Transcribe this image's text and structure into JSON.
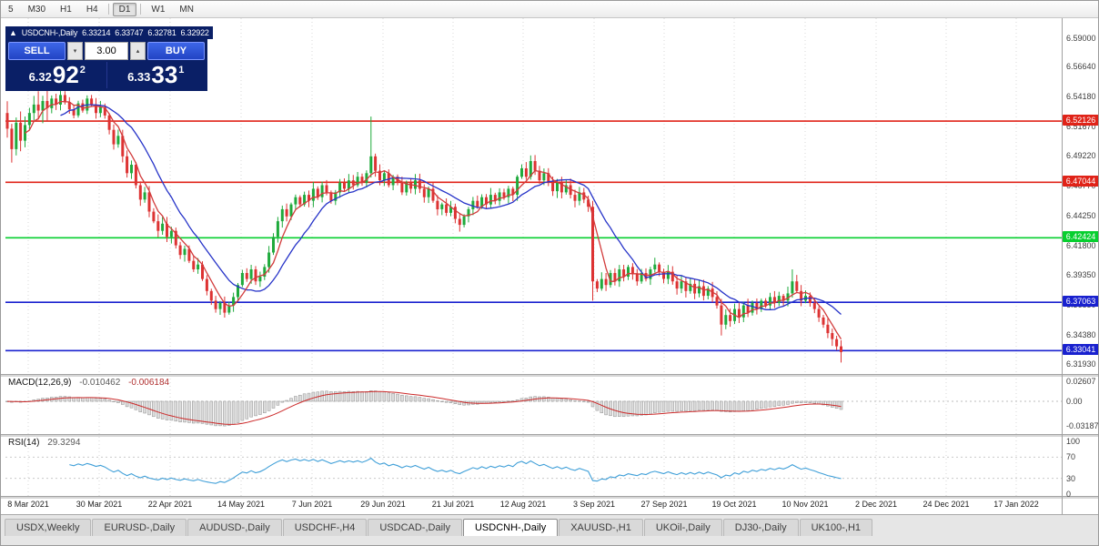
{
  "colors": {
    "up": "#1faa3c",
    "down": "#dd3333",
    "ma_fast": "#d23b3b",
    "ma_slow": "#2633c8",
    "panel_navy": "#0a1f66",
    "button_blue": "#2d53d6"
  },
  "toolbar": {
    "items": [
      "5",
      "M30",
      "H1",
      "H4",
      "|",
      "D1",
      "|",
      "W1",
      "MN"
    ],
    "active": "D1"
  },
  "chart_header": {
    "expander": "▲",
    "symbol": "USDCNH-,Daily",
    "open": "6.33214",
    "high": "6.33747",
    "low": "6.32781",
    "close": "6.32922"
  },
  "trade_panel": {
    "sell_label": "SELL",
    "buy_label": "BUY",
    "volume": "3.00",
    "spin_down": "▾",
    "spin_up": "▴",
    "bid_small": "6.32",
    "bid_big": "92",
    "bid_sup": "2",
    "ask_small": "6.33",
    "ask_big": "33",
    "ask_sup": "1"
  },
  "price_axis": {
    "ticks": [
      {
        "label": "6.59000",
        "value": 6.59
      },
      {
        "label": "6.56640",
        "value": 6.5664
      },
      {
        "label": "6.54180",
        "value": 6.5418
      },
      {
        "label": "6.51670",
        "value": 6.5167
      },
      {
        "label": "6.49220",
        "value": 6.4922
      },
      {
        "label": "6.46770",
        "value": 6.4677
      },
      {
        "label": "6.44250",
        "value": 6.4425
      },
      {
        "label": "6.41800",
        "value": 6.418
      },
      {
        "label": "6.39350",
        "value": 6.3935
      },
      {
        "label": "6.36850",
        "value": 6.3685
      },
      {
        "label": "6.34380",
        "value": 6.3438
      },
      {
        "label": "6.31930",
        "value": 6.3193
      }
    ]
  },
  "hlines": [
    {
      "label": "6.52126",
      "value": 6.52126,
      "color": "#e02318"
    },
    {
      "label": "6.47044",
      "value": 6.47044,
      "color": "#e02318"
    },
    {
      "label": "6.42424",
      "value": 6.42424,
      "color": "#07cf2f"
    },
    {
      "label": "6.37063",
      "value": 6.37063,
      "color": "#1921cf"
    },
    {
      "label": "6.33041",
      "value": 6.33041,
      "color": "#1921cf"
    }
  ],
  "macd": {
    "title": "MACD(12,26,9)",
    "value1": "-0.010462",
    "value2": "-0.006184",
    "axis": [
      {
        "label": "0.02607",
        "value": 0.02607
      },
      {
        "label": "0.00",
        "value": 0
      },
      {
        "label": "-0.03187",
        "value": -0.03187
      }
    ],
    "params": {
      "fast": 12,
      "slow": 26,
      "signal": 9
    }
  },
  "rsi": {
    "title": "RSI(14)",
    "value": "29.3294",
    "period": 14,
    "axis": [
      {
        "label": "100",
        "value": 100
      },
      {
        "label": "70",
        "value": 70
      },
      {
        "label": "30",
        "value": 30
      },
      {
        "label": "0",
        "value": 0
      }
    ],
    "levels": [
      70,
      30
    ]
  },
  "time_axis": {
    "labels": [
      "8 Mar 2021",
      "30 Mar 2021",
      "22 Apr 2021",
      "14 May 2021",
      "7 Jun 2021",
      "29 Jun 2021",
      "21 Jul 2021",
      "12 Aug 2021",
      "3 Sep 2021",
      "27 Sep 2021",
      "19 Oct 2021",
      "10 Nov 2021",
      "2 Dec 2021",
      "24 Dec 2021",
      "17 Jan 2022"
    ]
  },
  "tabs": [
    {
      "label": "USDX,Weekly",
      "active": false
    },
    {
      "label": "EURUSD-,Daily",
      "active": false
    },
    {
      "label": "AUDUSD-,Daily",
      "active": false
    },
    {
      "label": "USDCHF-,H4",
      "active": false
    },
    {
      "label": "USDCAD-,Daily",
      "active": false
    },
    {
      "label": "USDCNH-,Daily",
      "active": true
    },
    {
      "label": "XAUUSD-,H1",
      "active": false
    },
    {
      "label": "UKOil-,Daily",
      "active": false
    },
    {
      "label": "DJ30-,Daily",
      "active": false
    },
    {
      "label": "UK100-,H1",
      "active": false
    }
  ],
  "chart_data": {
    "type": "candlestick",
    "symbol": "USDCNH",
    "timeframe": "Daily",
    "ylim": [
      6.3125,
      6.5985
    ],
    "ma_fast_period": 5,
    "ma_slow_period": 13,
    "first_open": 6.528,
    "closes": [
      6.515,
      6.498,
      6.52,
      6.505,
      6.518,
      6.528,
      6.535,
      6.53,
      6.538,
      6.532,
      6.54,
      6.535,
      6.543,
      6.537,
      6.531,
      6.526,
      6.536,
      6.53,
      6.54,
      6.535,
      6.528,
      6.533,
      6.526,
      6.514,
      6.502,
      6.509,
      6.492,
      6.478,
      6.485,
      6.468,
      6.456,
      6.462,
      6.446,
      6.438,
      6.43,
      6.436,
      6.425,
      6.43,
      6.418,
      6.41,
      6.415,
      6.405,
      6.398,
      6.402,
      6.39,
      6.38,
      6.372,
      6.365,
      6.37,
      6.362,
      6.368,
      6.375,
      6.385,
      6.395,
      6.39,
      6.398,
      6.388,
      6.392,
      6.4,
      6.412,
      6.425,
      6.438,
      6.448,
      6.442,
      6.452,
      6.458,
      6.452,
      6.46,
      6.455,
      6.465,
      6.458,
      6.468,
      6.462,
      6.455,
      6.462,
      6.47,
      6.465,
      6.472,
      6.468,
      6.475,
      6.47,
      6.478,
      6.492,
      6.48,
      6.472,
      6.478,
      6.468,
      6.475,
      6.47,
      6.462,
      6.47,
      6.465,
      6.472,
      6.465,
      6.458,
      6.465,
      6.455,
      6.448,
      6.452,
      6.445,
      6.45,
      6.44,
      6.435,
      6.442,
      6.448,
      6.455,
      6.45,
      6.458,
      6.452,
      6.46,
      6.455,
      6.462,
      6.458,
      6.465,
      6.46,
      6.475,
      6.482,
      6.475,
      6.488,
      6.48,
      6.472,
      6.478,
      6.47,
      6.463,
      6.47,
      6.462,
      6.468,
      6.46,
      6.455,
      6.462,
      6.456,
      6.45,
      6.388,
      6.382,
      6.39,
      6.385,
      6.395,
      6.388,
      6.398,
      6.392,
      6.4,
      6.394,
      6.388,
      6.395,
      6.39,
      6.398,
      6.402,
      6.396,
      6.39,
      6.396,
      6.388,
      6.382,
      6.388,
      6.38,
      6.386,
      6.378,
      6.384,
      6.376,
      6.382,
      6.375,
      6.368,
      6.352,
      6.36,
      6.355,
      6.365,
      6.358,
      6.368,
      6.362,
      6.37,
      6.365,
      6.372,
      6.368,
      6.375,
      6.37,
      6.376,
      6.372,
      6.378,
      6.388,
      6.38,
      6.372,
      6.376,
      6.37,
      6.365,
      6.358,
      6.352,
      6.345,
      6.34,
      6.334,
      6.3292
    ],
    "wick_overrides": {
      "82": {
        "high": 6.525
      },
      "132": {
        "low": 6.372
      },
      "161": {
        "low": 6.343
      },
      "177": {
        "high": 6.398
      },
      "188": {
        "low": 6.3205
      }
    }
  }
}
